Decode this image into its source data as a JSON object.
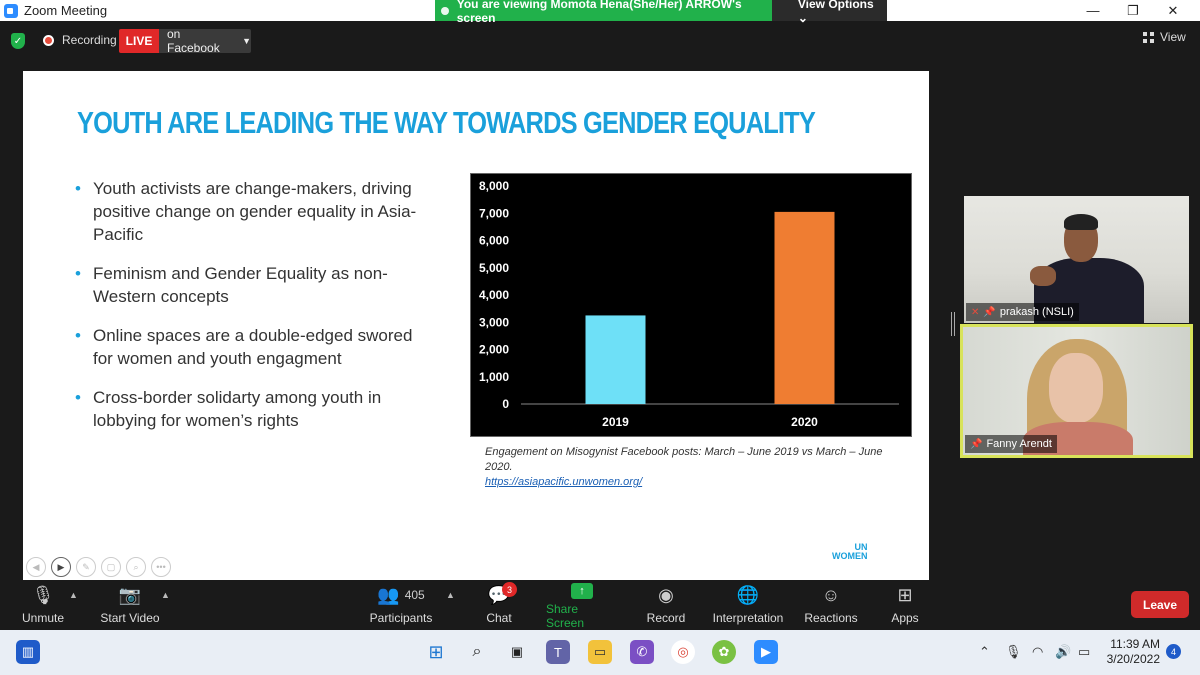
{
  "window": {
    "title": "Zoom Meeting"
  },
  "banner": {
    "viewing_text": "You are viewing Momota Hena(She/Her) ARROW's screen",
    "view_options": "View Options"
  },
  "topbar": {
    "recording_label": "Recording",
    "live_label": "LIVE",
    "stream_target": "on Facebook",
    "view_label": "View"
  },
  "slide": {
    "title": "YOUTH ARE LEADING THE WAY TOWARDS GENDER EQUALITY",
    "bullets": [
      "Youth activists are change-makers, driving positive change on gender equality in Asia-Pacific",
      "Feminism and Gender Equality as non-Western concepts",
      "Online spaces are a double-edged swored for women and youth engagment",
      "Cross-border solidarty among youth in lobbying for women’s rights"
    ],
    "caption": "Engagement on Misogynist Facebook posts: March – June 2019 vs March – June 2020.",
    "link": "https://asiapacific.unwomen.org/",
    "logo_line1": "UN",
    "logo_line2": "WOMEN"
  },
  "chart_data": {
    "type": "bar",
    "categories": [
      "2019",
      "2020"
    ],
    "values": [
      3250,
      7050
    ],
    "colors": [
      "#6ee0f7",
      "#ef7d32"
    ],
    "ylim": [
      0,
      8000
    ],
    "yticks": [
      "0",
      "1,000",
      "2,000",
      "3,000",
      "4,000",
      "5,000",
      "6,000",
      "7,000",
      "8,000"
    ],
    "title": "",
    "xlabel": "",
    "ylabel": "",
    "grid": false
  },
  "participants_video": [
    {
      "name": "prakash (NSLI)"
    },
    {
      "name": "Fanny Arendt"
    }
  ],
  "toolbar": {
    "unmute": "Unmute",
    "start_video": "Start Video",
    "participants": "Participants",
    "participants_count": "405",
    "chat": "Chat",
    "chat_badge": "3",
    "share_screen": "Share Screen",
    "record": "Record",
    "interpretation": "Interpretation",
    "reactions": "Reactions",
    "apps": "Apps",
    "leave": "Leave"
  },
  "taskbar": {
    "time": "11:39 AM",
    "date": "3/20/2022",
    "notifications": "4"
  }
}
